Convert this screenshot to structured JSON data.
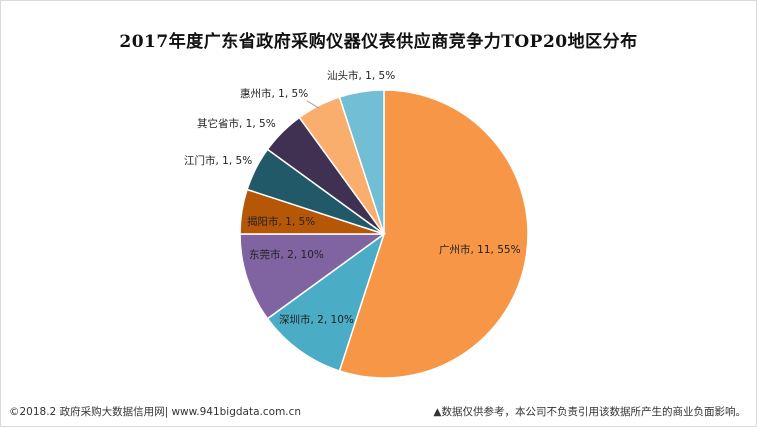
{
  "chart_data": {
    "type": "pie",
    "title": "2017年度广东省政府采购仪器仪表供应商竞争力TOP20地区分布",
    "slices": [
      {
        "name": "广州市",
        "value": 11,
        "percent": "55%",
        "color": "#F79646",
        "label": "广州市, 11, 55%"
      },
      {
        "name": "深圳市",
        "value": 2,
        "percent": "10%",
        "color": "#4BACC6",
        "label": "深圳市, 2, 10%"
      },
      {
        "name": "东莞市",
        "value": 2,
        "percent": "10%",
        "color": "#8064A2",
        "label": "东莞市, 2, 10%"
      },
      {
        "name": "揭阳市",
        "value": 1,
        "percent": "5%",
        "color": "#B65708",
        "label": "揭阳市, 1, 5%"
      },
      {
        "name": "江门市",
        "value": 1,
        "percent": "5%",
        "color": "#215968",
        "label": "江门市, 1, 5%"
      },
      {
        "name": "其它省市",
        "value": 1,
        "percent": "5%",
        "color": "#403152",
        "label": "其它省市, 1, 5%"
      },
      {
        "name": "惠州市",
        "value": 1,
        "percent": "5%",
        "color": "#FAAE6E",
        "label": "惠州市, 1, 5%"
      },
      {
        "name": "汕头市",
        "value": 1,
        "percent": "5%",
        "color": "#72BED4",
        "label": "汕头市, 1, 5%"
      }
    ],
    "legend": "none"
  },
  "footer": {
    "left": "©2018.2 政府采购大数据信用网| www.941bigdata.com.cn",
    "right": "▲数据仅供参考，本公司不负责引用该数据所产生的商业负面影响。"
  }
}
